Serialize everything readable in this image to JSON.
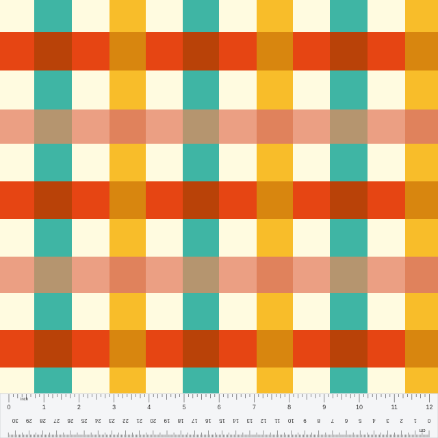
{
  "ruler": {
    "inch_unit": "inch",
    "inch_labels": [
      "0",
      "1",
      "2",
      "3",
      "4",
      "5",
      "6",
      "7",
      "8",
      "9",
      "10",
      "11",
      "12"
    ],
    "cm_unit": "cm",
    "cm_labels": [
      "30",
      "29",
      "28",
      "27",
      "26",
      "25",
      "24",
      "23",
      "22",
      "21",
      "20",
      "19",
      "18",
      "17",
      "16",
      "15",
      "14",
      "13",
      "12",
      "11",
      "10",
      "9",
      "8",
      "7",
      "6",
      "5",
      "4",
      "3",
      "2",
      "1",
      "0"
    ]
  }
}
